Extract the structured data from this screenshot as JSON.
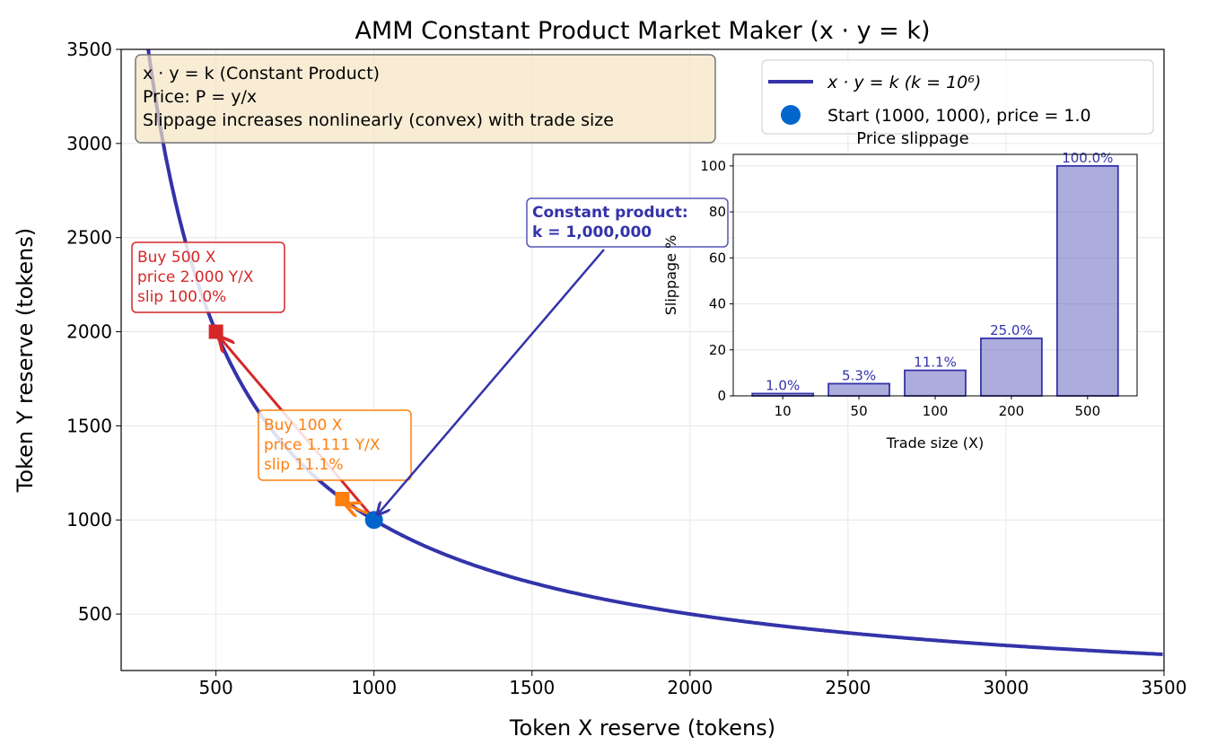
{
  "chart_data": [
    {
      "type": "line",
      "title": "AMM Constant Product Market Maker (x · y = k)",
      "xlabel": "Token X reserve (tokens)",
      "ylabel": "Token Y reserve (tokens)",
      "xlim": [
        200,
        3500
      ],
      "ylim": [
        200,
        3500
      ],
      "xticks": [
        500,
        1000,
        1500,
        2000,
        2500,
        3000,
        3500
      ],
      "yticks": [
        500,
        1000,
        1500,
        2000,
        2500,
        3000,
        3500
      ],
      "grid": true,
      "k": 1000000,
      "series": [
        {
          "name": "x · y = k  (k = 10⁶)",
          "color": "#3333aa"
        }
      ],
      "start": {
        "name": "Start (1000, 1000), price = 1.0",
        "x": 1000,
        "y": 1000,
        "color": "#0066cc"
      },
      "trades": [
        {
          "x": 500,
          "y": 2000,
          "color": "#d62728",
          "lines": [
            "Buy 500 X",
            "price 2.000 Y/X",
            "slip 100.0%"
          ]
        },
        {
          "x": 900,
          "y": 1111.1,
          "color": "#ff7f0e",
          "lines": [
            "Buy 100 X",
            "price 1.111 Y/X",
            "slip 11.1%"
          ]
        }
      ],
      "annotation": {
        "lines": [
          "Constant product:",
          "k = 1,000,000"
        ],
        "color": "#3333aa"
      },
      "infobox": [
        "x · y = k (Constant Product)",
        "Price: P = y/x",
        "Slippage increases nonlinearly (convex) with trade size"
      ],
      "legend": "top-right"
    },
    {
      "type": "bar",
      "title": "Price slippage",
      "xlabel": "Trade size (X)",
      "ylabel": "Slippage %",
      "categories": [
        "10",
        "50",
        "100",
        "200",
        "500"
      ],
      "values": [
        1.0,
        5.3,
        11.1,
        25.0,
        100.0
      ],
      "labels": [
        "1.0%",
        "5.3%",
        "11.1%",
        "25.0%",
        "100.0%"
      ],
      "ylim": [
        0,
        105
      ],
      "yticks": [
        0,
        20,
        40,
        60,
        80,
        100
      ],
      "grid": true,
      "color": "#3333aa"
    }
  ]
}
